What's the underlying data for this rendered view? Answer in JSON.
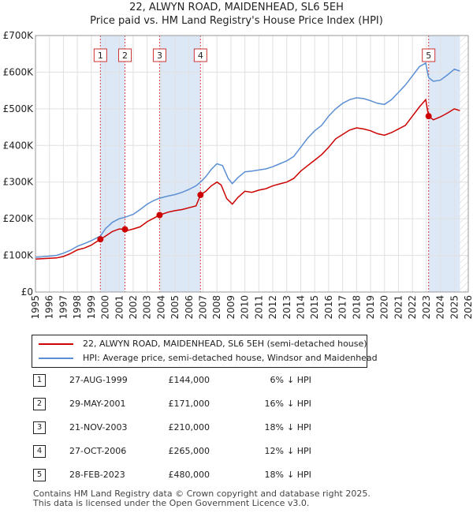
{
  "chart_data": {
    "type": "line",
    "title": "22, ALWYN ROAD, MAIDENHEAD, SL6 5EH",
    "subtitle": "Price paid vs. HM Land Registry's House Price Index (HPI)",
    "xlim": [
      1995,
      2026
    ],
    "ylim": [
      0,
      700000
    ],
    "y_ticks": [
      {
        "value": 0,
        "label": "£0"
      },
      {
        "value": 100000,
        "label": "£100K"
      },
      {
        "value": 200000,
        "label": "£200K"
      },
      {
        "value": 300000,
        "label": "£300K"
      },
      {
        "value": 400000,
        "label": "£400K"
      },
      {
        "value": 500000,
        "label": "£500K"
      },
      {
        "value": 600000,
        "label": "£600K"
      },
      {
        "value": 700000,
        "label": "£700K"
      }
    ],
    "x_ticks": [
      "1995",
      "1996",
      "1997",
      "1998",
      "1999",
      "2000",
      "2001",
      "2002",
      "2003",
      "2004",
      "2005",
      "2006",
      "2007",
      "2008",
      "2009",
      "2010",
      "2011",
      "2012",
      "2013",
      "2014",
      "2015",
      "2016",
      "2017",
      "2018",
      "2019",
      "2020",
      "2021",
      "2022",
      "2023",
      "2024",
      "2025",
      "2026"
    ],
    "series": [
      {
        "name": "22, ALWYN ROAD, MAIDENHEAD, SL6 5EH (semi-detached house)",
        "color": "#cc0000",
        "points": [
          [
            1995.0,
            90000
          ],
          [
            1995.5,
            91000
          ],
          [
            1996.0,
            92000
          ],
          [
            1996.5,
            93000
          ],
          [
            1997.0,
            97000
          ],
          [
            1997.5,
            105000
          ],
          [
            1998.0,
            115000
          ],
          [
            1998.5,
            120000
          ],
          [
            1999.0,
            128000
          ],
          [
            1999.65,
            144000
          ],
          [
            2000.0,
            152000
          ],
          [
            2000.5,
            165000
          ],
          [
            2001.0,
            172000
          ],
          [
            2001.41,
            171000
          ],
          [
            2001.6,
            168000
          ],
          [
            2002.0,
            172000
          ],
          [
            2002.5,
            178000
          ],
          [
            2003.0,
            192000
          ],
          [
            2003.5,
            202000
          ],
          [
            2003.89,
            210000
          ],
          [
            2004.5,
            218000
          ],
          [
            2005.0,
            222000
          ],
          [
            2005.5,
            225000
          ],
          [
            2006.0,
            230000
          ],
          [
            2006.5,
            235000
          ],
          [
            2006.82,
            265000
          ],
          [
            2007.2,
            275000
          ],
          [
            2007.6,
            290000
          ],
          [
            2008.0,
            300000
          ],
          [
            2008.3,
            292000
          ],
          [
            2008.7,
            255000
          ],
          [
            2009.1,
            240000
          ],
          [
            2009.5,
            258000
          ],
          [
            2010.0,
            275000
          ],
          [
            2010.5,
            272000
          ],
          [
            2011.0,
            278000
          ],
          [
            2011.5,
            282000
          ],
          [
            2012.0,
            290000
          ],
          [
            2012.5,
            295000
          ],
          [
            2013.0,
            300000
          ],
          [
            2013.5,
            310000
          ],
          [
            2014.0,
            330000
          ],
          [
            2014.5,
            345000
          ],
          [
            2015.0,
            360000
          ],
          [
            2015.5,
            375000
          ],
          [
            2016.0,
            395000
          ],
          [
            2016.5,
            418000
          ],
          [
            2017.0,
            430000
          ],
          [
            2017.5,
            442000
          ],
          [
            2018.0,
            448000
          ],
          [
            2018.5,
            445000
          ],
          [
            2019.0,
            440000
          ],
          [
            2019.5,
            432000
          ],
          [
            2020.0,
            428000
          ],
          [
            2020.5,
            435000
          ],
          [
            2021.0,
            445000
          ],
          [
            2021.5,
            455000
          ],
          [
            2022.0,
            480000
          ],
          [
            2022.5,
            505000
          ],
          [
            2022.95,
            525000
          ],
          [
            2023.16,
            480000
          ],
          [
            2023.5,
            470000
          ],
          [
            2024.0,
            478000
          ],
          [
            2024.5,
            488000
          ],
          [
            2025.0,
            500000
          ],
          [
            2025.4,
            495000
          ]
        ]
      },
      {
        "name": "HPI: Average price, semi-detached house, Windsor and Maidenhead",
        "color": "#5b8fd4",
        "points": [
          [
            1995.0,
            95000
          ],
          [
            1995.5,
            96000
          ],
          [
            1996.0,
            98000
          ],
          [
            1996.5,
            100000
          ],
          [
            1997.0,
            106000
          ],
          [
            1997.5,
            114000
          ],
          [
            1998.0,
            125000
          ],
          [
            1998.5,
            132000
          ],
          [
            1999.0,
            140000
          ],
          [
            1999.65,
            153000
          ],
          [
            2000.0,
            172000
          ],
          [
            2000.5,
            190000
          ],
          [
            2001.0,
            200000
          ],
          [
            2001.41,
            204000
          ],
          [
            2002.0,
            212000
          ],
          [
            2002.5,
            225000
          ],
          [
            2003.0,
            240000
          ],
          [
            2003.5,
            250000
          ],
          [
            2003.89,
            256000
          ],
          [
            2004.5,
            262000
          ],
          [
            2005.0,
            266000
          ],
          [
            2005.5,
            272000
          ],
          [
            2006.0,
            280000
          ],
          [
            2006.5,
            290000
          ],
          [
            2006.82,
            300000
          ],
          [
            2007.2,
            315000
          ],
          [
            2007.6,
            335000
          ],
          [
            2008.0,
            350000
          ],
          [
            2008.4,
            345000
          ],
          [
            2008.8,
            310000
          ],
          [
            2009.1,
            296000
          ],
          [
            2009.5,
            312000
          ],
          [
            2010.0,
            328000
          ],
          [
            2010.5,
            330000
          ],
          [
            2011.0,
            333000
          ],
          [
            2011.5,
            336000
          ],
          [
            2012.0,
            342000
          ],
          [
            2012.5,
            350000
          ],
          [
            2013.0,
            358000
          ],
          [
            2013.5,
            370000
          ],
          [
            2014.0,
            395000
          ],
          [
            2014.5,
            420000
          ],
          [
            2015.0,
            440000
          ],
          [
            2015.5,
            455000
          ],
          [
            2016.0,
            480000
          ],
          [
            2016.5,
            500000
          ],
          [
            2017.0,
            515000
          ],
          [
            2017.5,
            525000
          ],
          [
            2018.0,
            530000
          ],
          [
            2018.5,
            528000
          ],
          [
            2019.0,
            522000
          ],
          [
            2019.5,
            515000
          ],
          [
            2020.0,
            512000
          ],
          [
            2020.5,
            525000
          ],
          [
            2021.0,
            545000
          ],
          [
            2021.5,
            565000
          ],
          [
            2022.0,
            590000
          ],
          [
            2022.5,
            615000
          ],
          [
            2022.95,
            625000
          ],
          [
            2023.16,
            585000
          ],
          [
            2023.5,
            575000
          ],
          [
            2024.0,
            578000
          ],
          [
            2024.5,
            592000
          ],
          [
            2025.0,
            608000
          ],
          [
            2025.4,
            603000
          ]
        ]
      }
    ],
    "sales": [
      {
        "num": "1",
        "x": 1999.65,
        "price": 144000,
        "date": "27-AUG-1999",
        "price_label": "£144,000",
        "pct": "6%",
        "rel": "↓ HPI"
      },
      {
        "num": "2",
        "x": 2001.41,
        "price": 171000,
        "date": "29-MAY-2001",
        "price_label": "£171,000",
        "pct": "16%",
        "rel": "↓ HPI"
      },
      {
        "num": "3",
        "x": 2003.89,
        "price": 210000,
        "date": "21-NOV-2003",
        "price_label": "£210,000",
        "pct": "18%",
        "rel": "↓ HPI"
      },
      {
        "num": "4",
        "x": 2006.82,
        "price": 265000,
        "date": "27-OCT-2006",
        "price_label": "£265,000",
        "pct": "12%",
        "rel": "↓ HPI"
      },
      {
        "num": "5",
        "x": 2023.16,
        "price": 480000,
        "date": "28-FEB-2023",
        "price_label": "£480,000",
        "pct": "18%",
        "rel": "↓ HPI"
      }
    ],
    "shaded_ranges": [
      [
        1999.65,
        2001.41
      ],
      [
        2003.89,
        2006.82
      ],
      [
        2023.16,
        2025.4
      ]
    ],
    "future_hatch_from": 2025.4
  },
  "legend": {
    "property_label": "22, ALWYN ROAD, MAIDENHEAD, SL6 5EH (semi-detached house)",
    "hpi_label": "HPI: Average price, semi-detached house, Windsor and Maidenhead",
    "property_color": "#cc0000",
    "hpi_color": "#5b8fd4"
  },
  "footer": {
    "line1": "Contains HM Land Registry data © Crown copyright and database right 2025.",
    "line2": "This data is licensed under the Open Government Licence v3.0."
  }
}
